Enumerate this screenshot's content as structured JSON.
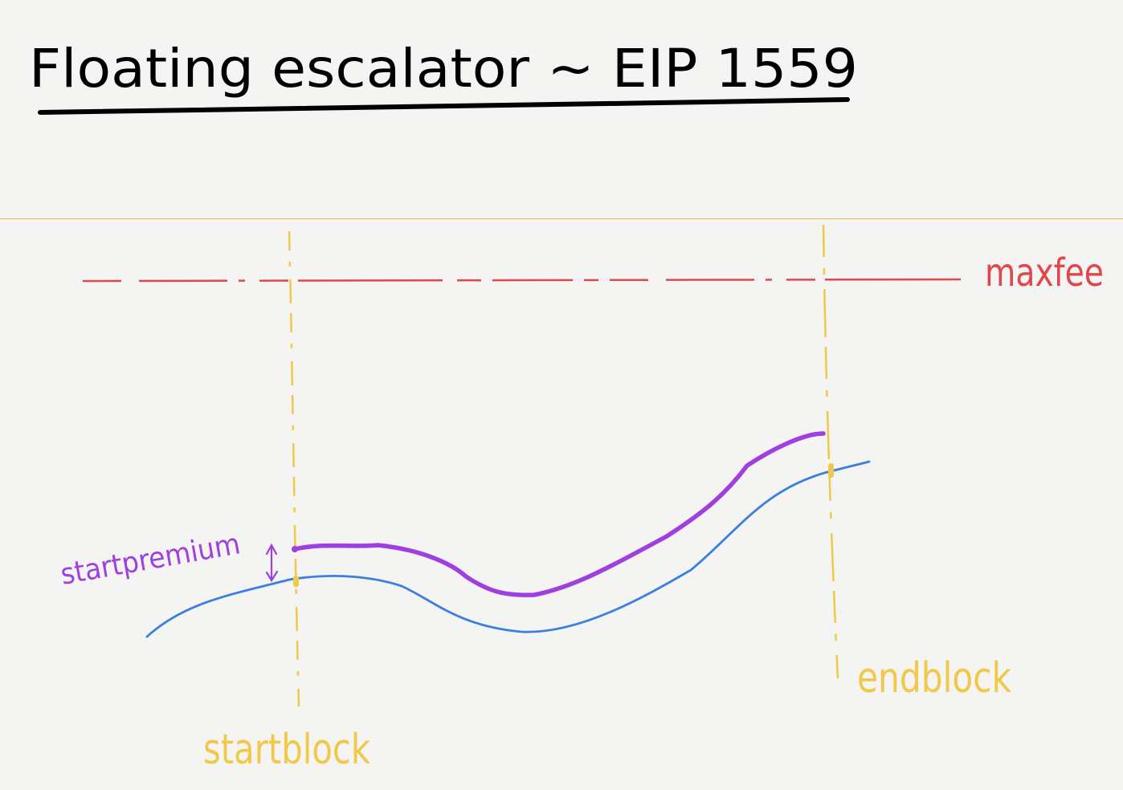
{
  "title": "Floating escalator ~ EIP 1559",
  "labels": {
    "maxfee": "maxfee",
    "startpremium": "startpremium",
    "startblock": "startblock",
    "endblock": "endblock"
  },
  "colors": {
    "title": "#000000",
    "maxfee": "#e0474c",
    "startblock": "#f0c84a",
    "endblock": "#f0c84a",
    "base_fee": "#3b7fe0",
    "escalator": "#a03fe0",
    "premium_label": "#a03fe0",
    "divider": "#e9b84a"
  }
}
